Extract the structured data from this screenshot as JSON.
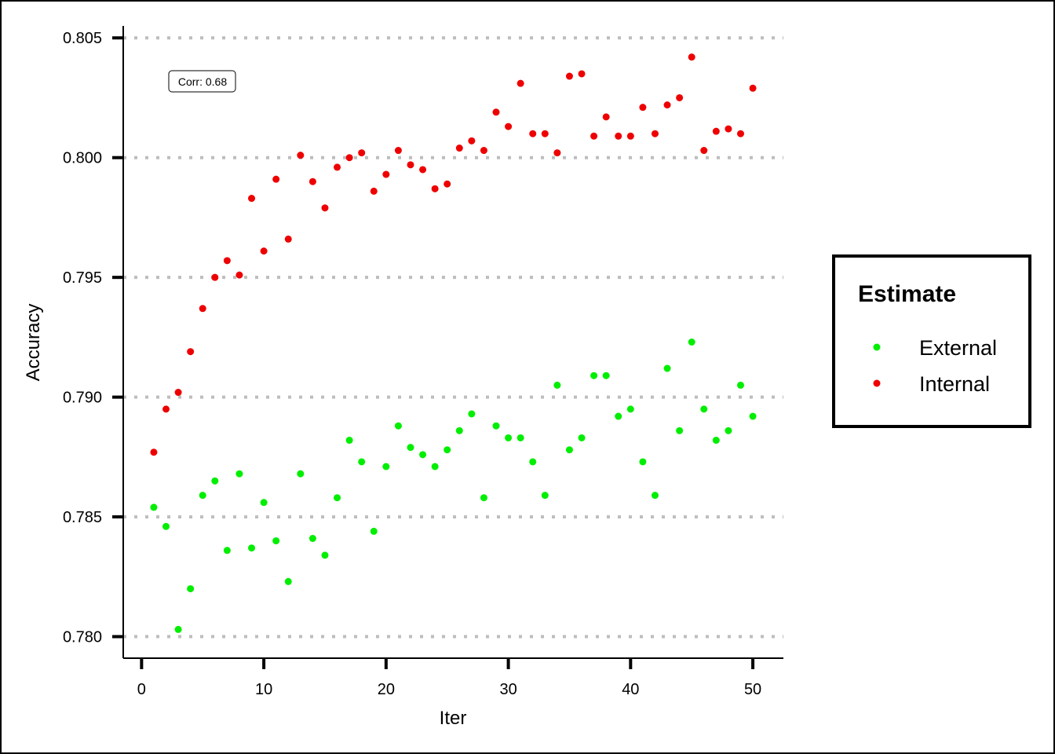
{
  "chart_data": {
    "type": "scatter",
    "xlabel": "Iter",
    "ylabel": "Accuracy",
    "xlim": [
      -1.5,
      52.5
    ],
    "ylim": [
      0.7791,
      0.8055
    ],
    "x_ticks": [
      0,
      10,
      20,
      30,
      40,
      50
    ],
    "x_tick_labels": [
      "0",
      "10",
      "20",
      "30",
      "40",
      "50"
    ],
    "y_ticks": [
      0.78,
      0.785,
      0.79,
      0.795,
      0.8,
      0.805
    ],
    "y_tick_labels": [
      "0.780",
      "0.785",
      "0.790",
      "0.795",
      "0.800",
      "0.805"
    ],
    "grid": "horizontal dotted",
    "legend": {
      "title": "Estimate",
      "position": "right"
    },
    "annotation": "Corr: 0.68",
    "x": [
      1,
      2,
      3,
      4,
      5,
      6,
      7,
      8,
      9,
      10,
      11,
      12,
      13,
      14,
      15,
      16,
      17,
      18,
      19,
      20,
      21,
      22,
      23,
      24,
      25,
      26,
      27,
      28,
      29,
      30,
      31,
      32,
      33,
      34,
      35,
      36,
      37,
      38,
      39,
      40,
      41,
      42,
      43,
      44,
      45,
      46,
      47,
      48,
      49,
      50
    ],
    "series": [
      {
        "name": "External",
        "color": "#00ee00",
        "values": [
          0.7854,
          0.7846,
          0.7803,
          0.782,
          0.7859,
          0.7865,
          0.7836,
          0.7868,
          0.7837,
          0.7856,
          0.784,
          0.7823,
          0.7868,
          0.7841,
          0.7834,
          0.7858,
          0.7882,
          0.7873,
          0.7844,
          0.7871,
          0.7888,
          0.7879,
          0.7876,
          0.7871,
          0.7878,
          0.7886,
          0.7893,
          0.7858,
          0.7888,
          0.7883,
          0.7883,
          0.7873,
          0.7859,
          0.7905,
          0.7878,
          0.7883,
          0.7909,
          0.7909,
          0.7892,
          0.7895,
          0.7873,
          0.7859,
          0.7912,
          0.7886,
          0.7923,
          0.7895,
          0.7882,
          0.7886,
          0.7905,
          0.7892
        ]
      },
      {
        "name": "Internal",
        "color": "#ee0000",
        "values": [
          0.7877,
          0.7895,
          0.7902,
          0.7919,
          0.7937,
          0.795,
          0.7957,
          0.7951,
          0.7983,
          0.7961,
          0.7991,
          0.7966,
          0.8001,
          0.799,
          0.7979,
          0.7996,
          0.8,
          0.8002,
          0.7986,
          0.7993,
          0.8003,
          0.7997,
          0.7995,
          0.7987,
          0.7989,
          0.8004,
          0.8007,
          0.8003,
          0.8019,
          0.8013,
          0.8031,
          0.801,
          0.801,
          0.8002,
          0.8034,
          0.8035,
          0.8009,
          0.8017,
          0.8009,
          0.8009,
          0.8021,
          0.801,
          0.8022,
          0.8025,
          0.8042,
          0.8003,
          0.8011,
          0.8012,
          0.801,
          0.8029
        ]
      }
    ]
  }
}
